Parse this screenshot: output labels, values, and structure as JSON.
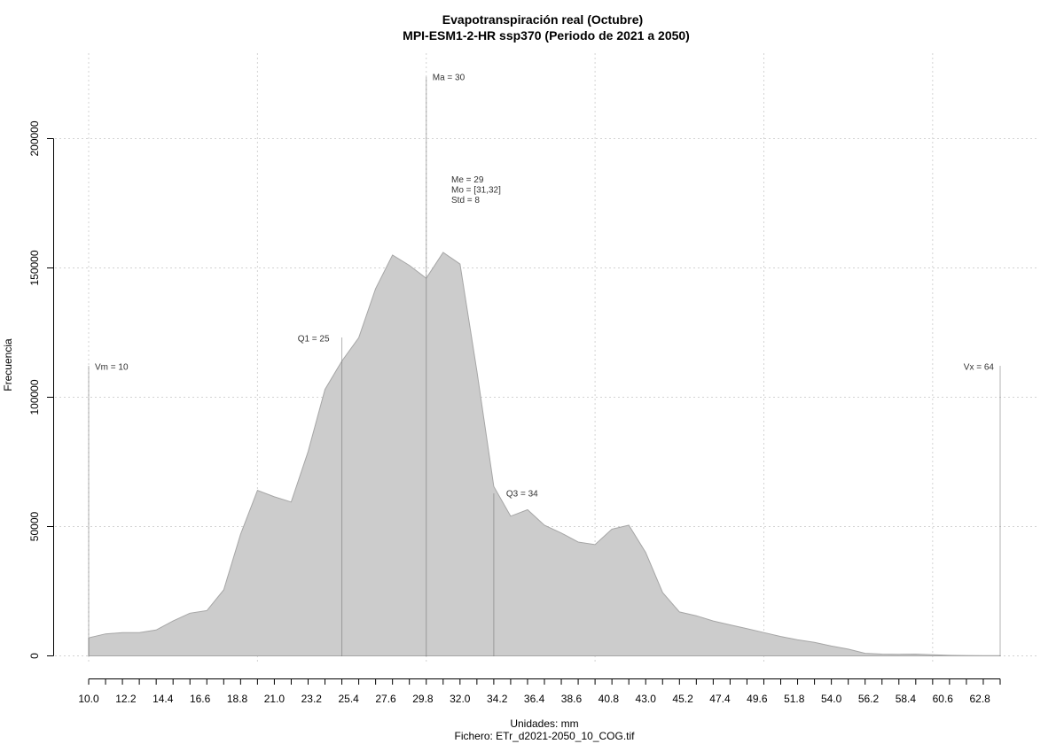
{
  "chart_data": {
    "type": "area",
    "title": "Evapotranspiración real (Octubre)",
    "subtitle": "MPI-ESM1-2-HR ssp370 (Periodo de 2021 a 2050)",
    "xlabel": "Unidades: mm",
    "caption": "Fichero: ETr_d2021-2050_10_COG.tif",
    "ylabel": "Frecuencia",
    "xlim": [
      10,
      64
    ],
    "ylim": [
      0,
      200000
    ],
    "x_tick_labels": [
      "10.0",
      "12.2",
      "14.4",
      "16.6",
      "18.8",
      "21.0",
      "23.2",
      "25.4",
      "27.6",
      "29.8",
      "32.0",
      "34.2",
      "36.4",
      "38.6",
      "40.8",
      "43.0",
      "45.2",
      "47.4",
      "49.6",
      "51.8",
      "54.0",
      "56.2",
      "58.4",
      "60.6",
      "62.8"
    ],
    "y_tick_labels": [
      "0",
      "50000",
      "100000",
      "150000",
      "200000"
    ],
    "grid": true,
    "fill_color": "#cccccc",
    "line_color": "#a6a6a6",
    "series": [
      {
        "x": [
          10,
          11,
          12,
          13,
          14,
          15,
          16,
          17,
          18,
          19,
          20,
          21,
          22,
          23,
          24,
          25,
          26,
          27,
          28,
          29,
          30,
          31,
          32,
          33,
          34,
          35,
          36,
          37,
          38,
          39,
          40,
          41,
          42,
          43,
          44,
          45,
          46,
          47,
          48,
          49,
          50,
          51,
          52,
          53,
          54,
          55,
          56,
          57,
          58,
          59,
          60,
          61,
          62,
          63,
          64
        ],
        "values": [
          7000,
          8500,
          9000,
          9000,
          10000,
          13500,
          16500,
          17500,
          25500,
          47000,
          64000,
          61500,
          59500,
          79000,
          103000,
          114000,
          123000,
          142000,
          155000,
          151000,
          146000,
          156000,
          151500,
          110000,
          65500,
          54000,
          56500,
          50500,
          47500,
          44000,
          43000,
          49000,
          50500,
          40000,
          24500,
          17000,
          15500,
          13500,
          12000,
          10500,
          9000,
          7500,
          6200,
          5200,
          3800,
          2600,
          1000,
          700,
          600,
          700,
          400,
          200,
          150,
          100,
          80
        ]
      }
    ],
    "markers": [
      {
        "label": "Vm = 10",
        "x": 10,
        "y": 112000
      },
      {
        "label": "Q1 = 25",
        "x": 25,
        "y": 123000
      },
      {
        "label": "Ma = 30",
        "x": 30,
        "y": 224000
      },
      {
        "label": "Q3 = 34",
        "x": 34,
        "y": 63000
      },
      {
        "label": "Vx = 64",
        "x": 64,
        "y": 112000
      }
    ],
    "stats": [
      "Me = 29",
      "Mo = [31,32]",
      "Std = 8"
    ]
  }
}
